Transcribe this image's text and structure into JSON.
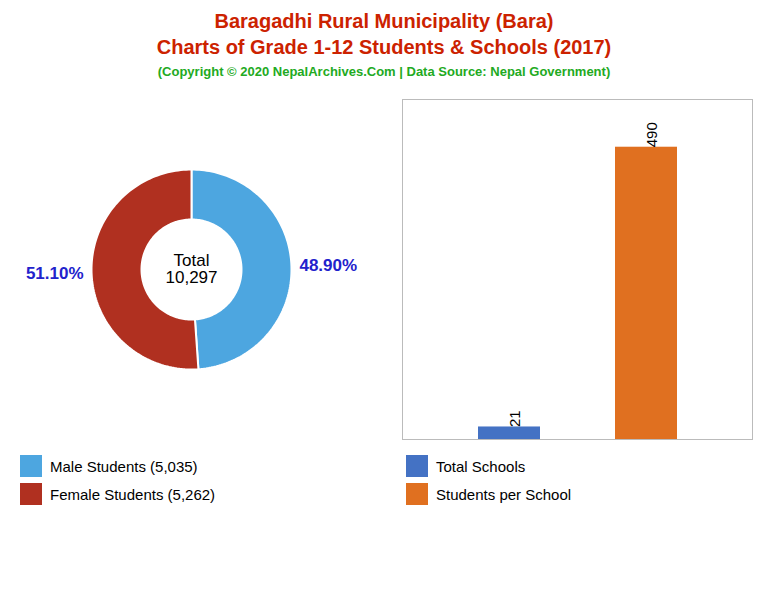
{
  "chart_data": [
    {
      "type": "donut",
      "title": "Baragadhi Rural Municipality (Bara)\nCharts of Grade 1-12 Students & Schools (2017)",
      "subtitle": "(Copyright © 2020 NepalArchives.Com | Data Source: Nepal Government)",
      "categories": [
        "Male Students (5,035)",
        "Female Students (5,262)"
      ],
      "values": [
        48.9,
        51.1
      ],
      "value_labels": [
        "48.90%",
        "51.10%"
      ],
      "colors": [
        "#4da6e0",
        "#b03020"
      ],
      "annotations": [
        "Total\n10,297"
      ],
      "data_labels": true,
      "legend": "bottom"
    },
    {
      "type": "bar",
      "categories": [
        "Total Schools",
        "Students per School"
      ],
      "values": [
        21,
        490
      ],
      "colors": [
        "#4472c4",
        "#e07020"
      ],
      "ylim": [
        0,
        570
      ],
      "tick_labels": false,
      "data_labels": true,
      "legend": "bottom"
    }
  ]
}
